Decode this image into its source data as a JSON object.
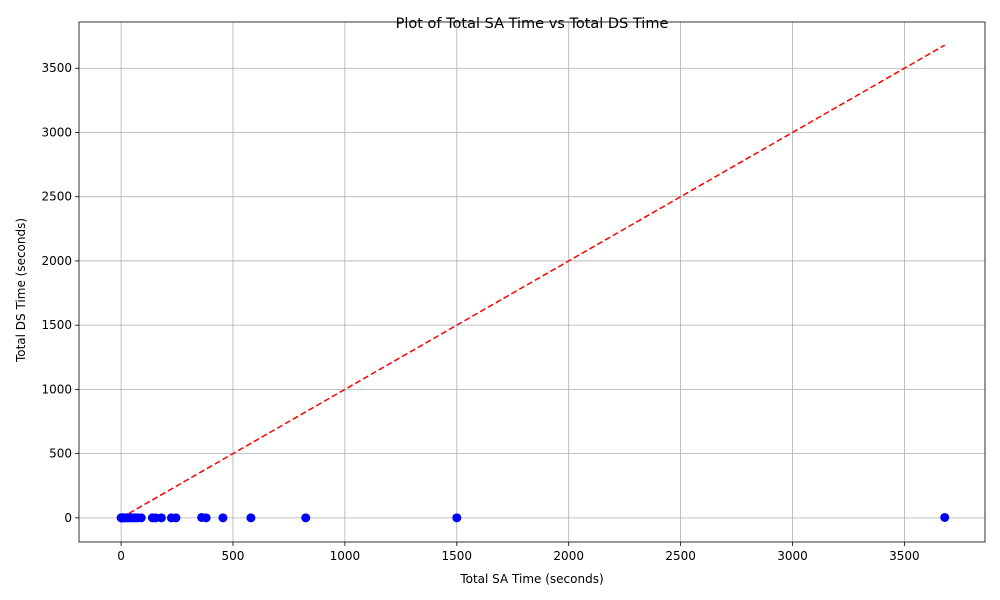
{
  "chart_data": {
    "type": "scatter",
    "title": "Plot of Total SA Time vs Total DS Time",
    "xlabel": "Total SA Time (seconds)",
    "ylabel": "Total DS Time (seconds)",
    "xlim": [
      -188,
      3860
    ],
    "ylim": [
      -188,
      3860
    ],
    "xticks": [
      0,
      500,
      1000,
      1500,
      2000,
      2500,
      3000,
      3500
    ],
    "yticks": [
      0,
      500,
      1000,
      1500,
      2000,
      2500,
      3000,
      3500
    ],
    "grid": true,
    "series": [
      {
        "marker_color": "#0000ff",
        "points": [
          {
            "x": 0,
            "y": 0
          },
          {
            "x": 2,
            "y": 0
          },
          {
            "x": 5,
            "y": 0
          },
          {
            "x": 8,
            "y": 1
          },
          {
            "x": 12,
            "y": 0
          },
          {
            "x": 18,
            "y": 0
          },
          {
            "x": 25,
            "y": 1
          },
          {
            "x": 32,
            "y": 0
          },
          {
            "x": 40,
            "y": 0
          },
          {
            "x": 48,
            "y": 1
          },
          {
            "x": 55,
            "y": 0
          },
          {
            "x": 65,
            "y": 0
          },
          {
            "x": 75,
            "y": 0
          },
          {
            "x": 90,
            "y": 0
          },
          {
            "x": 140,
            "y": 0
          },
          {
            "x": 155,
            "y": 0
          },
          {
            "x": 180,
            "y": 0
          },
          {
            "x": 225,
            "y": 0
          },
          {
            "x": 245,
            "y": 0
          },
          {
            "x": 360,
            "y": 3
          },
          {
            "x": 380,
            "y": 0
          },
          {
            "x": 455,
            "y": 0
          },
          {
            "x": 580,
            "y": 0
          },
          {
            "x": 825,
            "y": 0
          },
          {
            "x": 1500,
            "y": 0
          },
          {
            "x": 3680,
            "y": 3
          }
        ]
      }
    ],
    "reference_line": {
      "x": [
        0,
        3680
      ],
      "y": [
        0,
        3680
      ],
      "color": "#ff0000",
      "style": "dashed"
    }
  }
}
